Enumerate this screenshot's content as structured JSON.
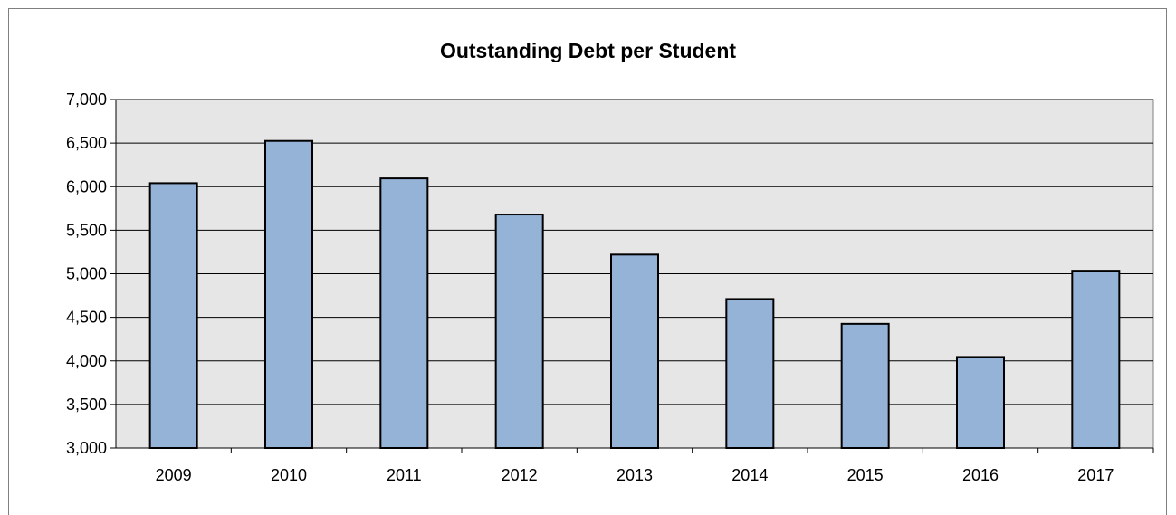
{
  "chart_data": {
    "type": "bar",
    "title": "Outstanding Debt per Student",
    "xlabel": "",
    "ylabel": "",
    "categories": [
      "2009",
      "2010",
      "2011",
      "2012",
      "2013",
      "2014",
      "2015",
      "2016",
      "2017"
    ],
    "values": [
      6040,
      6525,
      6095,
      5680,
      5220,
      4710,
      4425,
      4045,
      5035
    ],
    "ylim": [
      3000,
      7000
    ],
    "yticks": [
      "3,000",
      "3,500",
      "4,000",
      "4,500",
      "5,000",
      "5,500",
      "6,000",
      "6,500",
      "7,000"
    ],
    "grid": true,
    "legend": "none",
    "colors": {
      "bar_fill": "#95B3D7",
      "bar_stroke": "#000000",
      "plot_background": "#E6E6E6",
      "gridline": "#000000"
    }
  }
}
